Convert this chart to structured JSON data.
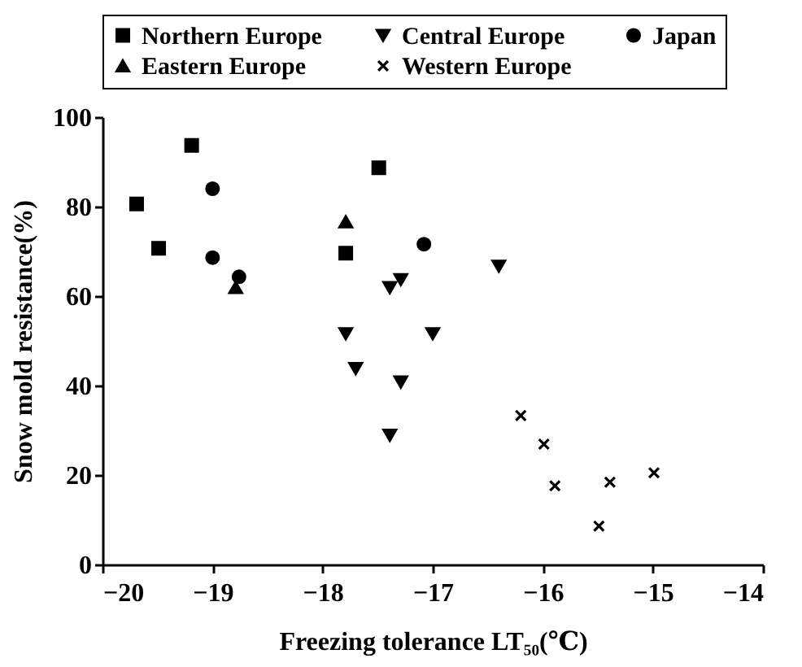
{
  "chart_data": {
    "type": "scatter",
    "xlabel": "Freezing tolerance LT₅₀(℃)",
    "ylabel": "Snow mold resistance(%)",
    "xlim": [
      -20,
      -14
    ],
    "xticks": [
      -20,
      -19,
      -18,
      -17,
      -16,
      -15,
      -14
    ],
    "ylim": [
      0,
      100
    ],
    "yticks": [
      0,
      20,
      40,
      60,
      80,
      100
    ],
    "grid": false,
    "legend": "top",
    "series": [
      {
        "name": "Northern Europe",
        "color": "#000000",
        "marker": "square",
        "x": [
          -19.69,
          -19.49,
          -19.19,
          -17.49,
          -17.79
        ],
        "values": [
          80.6,
          70.7,
          93.7,
          88.7,
          69.6
        ]
      },
      {
        "name": "Central Europe",
        "color": "#000000",
        "marker": "triangle-down",
        "x": [
          -17.39,
          -17.29,
          -17.79,
          -17.7,
          -17.29,
          -17.39,
          -16.4,
          -17.0
        ],
        "values": [
          61.9,
          63.7,
          51.6,
          43.8,
          40.8,
          28.9,
          66.7,
          51.6
        ]
      },
      {
        "name": "Japan",
        "color": "#000000",
        "marker": "circle",
        "x": [
          -19.0,
          -19.0,
          -18.76,
          -17.08
        ],
        "values": [
          84.0,
          68.6,
          64.3,
          71.6
        ]
      },
      {
        "name": "Eastern Europe",
        "color": "#000000",
        "marker": "triangle",
        "x": [
          -17.79,
          -18.79
        ],
        "values": [
          76.6,
          61.9
        ]
      },
      {
        "name": "Western Europe",
        "color": "#000000",
        "marker": "cross",
        "x": [
          -16.2,
          -15.99,
          -15.89,
          -15.39,
          -14.99,
          -15.49
        ],
        "values": [
          33.3,
          26.9,
          17.6,
          18.4,
          20.5,
          8.6
        ]
      }
    ]
  }
}
